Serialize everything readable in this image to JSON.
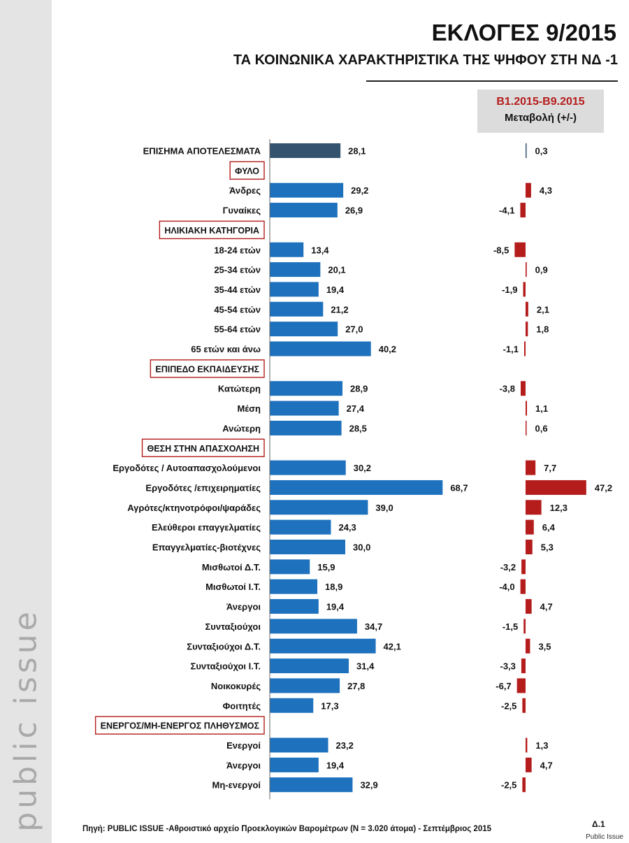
{
  "title": "ΕΚΛΟΓΕΣ 9/2015",
  "subtitle": "ΤΑ ΚΟΙΝΩΝΙΚΑ ΧΑΡΑΚΤΗΡΙΣΤΙΚΑ ΤΗΣ ΨΗΦΟΥ ΣΤΗ ΝΔ -1",
  "change_header": {
    "period": "Β1.2015-Β9.2015",
    "label": "Μεταβολή (+/-)"
  },
  "brand": "public issue",
  "source": "Πηγή:  PUBLIC ISSUE -Αθροιστικό αρχείο Προεκλογικών Βαρομέτρων (Ν = 3.020 άτομα)  - Σεπτέμβριος 2015",
  "page_number": "Δ.1",
  "watermark": "Public Issue",
  "colors": {
    "official_bar": "#34536f",
    "bar": "#1d71bd",
    "change_bar": "#b51c1c",
    "section_border": "#b51c1c"
  },
  "chart_data": {
    "type": "bar",
    "orientation": "horizontal",
    "series": [
      {
        "name": "",
        "role": "vote share"
      },
      {
        "name": "Μεταβολή (+/-)",
        "role": "change"
      }
    ],
    "rows": [
      {
        "kind": "item",
        "label": "ΕΠΙΣΗΜΑ ΑΠΟΤΕΛΕΣΜΑΤΑ",
        "value": 28.1,
        "value_text": "28,1",
        "change": 0.3,
        "change_text": "0,3",
        "official": true
      },
      {
        "kind": "section",
        "label": "ΦΥΛΟ"
      },
      {
        "kind": "item",
        "label": "Άνδρες",
        "value": 29.2,
        "value_text": "29,2",
        "change": 4.3,
        "change_text": "4,3"
      },
      {
        "kind": "item",
        "label": "Γυναίκες",
        "value": 26.9,
        "value_text": "26,9",
        "change": -4.1,
        "change_text": "-4,1"
      },
      {
        "kind": "section",
        "label": "ΗΛΙΚΙΑΚΗ ΚΑΤΗΓΟΡΙΑ"
      },
      {
        "kind": "item",
        "label": "18-24 ετών",
        "value": 13.4,
        "value_text": "13,4",
        "change": -8.5,
        "change_text": "-8,5"
      },
      {
        "kind": "item",
        "label": "25-34 ετών",
        "value": 20.1,
        "value_text": "20,1",
        "change": 0.9,
        "change_text": "0,9"
      },
      {
        "kind": "item",
        "label": "35-44 ετών",
        "value": 19.4,
        "value_text": "19,4",
        "change": -1.9,
        "change_text": "-1,9"
      },
      {
        "kind": "item",
        "label": "45-54 ετών",
        "value": 21.2,
        "value_text": "21,2",
        "change": 2.1,
        "change_text": "2,1"
      },
      {
        "kind": "item",
        "label": "55-64 ετών",
        "value": 27.0,
        "value_text": "27,0",
        "change": 1.8,
        "change_text": "1,8"
      },
      {
        "kind": "item",
        "label": "65 ετών και άνω",
        "value": 40.2,
        "value_text": "40,2",
        "change": -1.1,
        "change_text": "-1,1"
      },
      {
        "kind": "section",
        "label": "ΕΠΙΠΕΔΟ ΕΚΠΑΙΔΕΥΣΗΣ"
      },
      {
        "kind": "item",
        "label": "Κατώτερη",
        "value": 28.9,
        "value_text": "28,9",
        "change": -3.8,
        "change_text": "-3,8"
      },
      {
        "kind": "item",
        "label": "Μέση",
        "value": 27.4,
        "value_text": "27,4",
        "change": 1.1,
        "change_text": "1,1"
      },
      {
        "kind": "item",
        "label": "Ανώτερη",
        "value": 28.5,
        "value_text": "28,5",
        "change": 0.6,
        "change_text": "0,6"
      },
      {
        "kind": "section",
        "label": "ΘΕΣΗ ΣΤΗΝ ΑΠΑΣΧΟΛΗΣΗ"
      },
      {
        "kind": "item",
        "label": "Εργοδότες / Αυτοαπασχολούμενοι",
        "value": 30.2,
        "value_text": "30,2",
        "change": 7.7,
        "change_text": "7,7"
      },
      {
        "kind": "item",
        "label": "Εργοδότες /επιχειρηματίες",
        "value": 68.7,
        "value_text": "68,7",
        "change": 47.2,
        "change_text": "47,2"
      },
      {
        "kind": "item",
        "label": "Αγρότες/κτηνοτρόφοι/ψαράδες",
        "value": 39.0,
        "value_text": "39,0",
        "change": 12.3,
        "change_text": "12,3"
      },
      {
        "kind": "item",
        "label": "Ελεύθεροι επαγγελματίες",
        "value": 24.3,
        "value_text": "24,3",
        "change": 6.4,
        "change_text": "6,4"
      },
      {
        "kind": "item",
        "label": "Επαγγελματίες-βιοτέχνες",
        "value": 30.0,
        "value_text": "30,0",
        "change": 5.3,
        "change_text": "5,3"
      },
      {
        "kind": "item",
        "label": "Μισθωτοί Δ.Τ.",
        "value": 15.9,
        "value_text": "15,9",
        "change": -3.2,
        "change_text": "-3,2"
      },
      {
        "kind": "item",
        "label": "Μισθωτοί Ι.Τ.",
        "value": 18.9,
        "value_text": "18,9",
        "change": -4.0,
        "change_text": "-4,0"
      },
      {
        "kind": "item",
        "label": "Άνεργοι",
        "value": 19.4,
        "value_text": "19,4",
        "change": 4.7,
        "change_text": "4,7"
      },
      {
        "kind": "item",
        "label": "Συνταξιούχοι",
        "value": 34.7,
        "value_text": "34,7",
        "change": -1.5,
        "change_text": "-1,5"
      },
      {
        "kind": "item",
        "label": "Συνταξιούχοι Δ.Τ.",
        "value": 42.1,
        "value_text": "42,1",
        "change": 3.5,
        "change_text": "3,5"
      },
      {
        "kind": "item",
        "label": "Συνταξιούχοι Ι.Τ.",
        "value": 31.4,
        "value_text": "31,4",
        "change": -3.3,
        "change_text": "-3,3"
      },
      {
        "kind": "item",
        "label": "Νοικοκυρές",
        "value": 27.8,
        "value_text": "27,8",
        "change": -6.7,
        "change_text": "-6,7"
      },
      {
        "kind": "item",
        "label": "Φοιτητές",
        "value": 17.3,
        "value_text": "17,3",
        "change": -2.5,
        "change_text": "-2,5"
      },
      {
        "kind": "section",
        "label": "ΕΝΕΡΓΟΣ/ΜΗ-ΕΝΕΡΓΟΣ ΠΛΗΘΥΣΜΟΣ"
      },
      {
        "kind": "item",
        "label": "Ενεργοί",
        "value": 23.2,
        "value_text": "23,2",
        "change": 1.3,
        "change_text": "1,3"
      },
      {
        "kind": "item",
        "label": "Άνεργοι",
        "value": 19.4,
        "value_text": "19,4",
        "change": 4.7,
        "change_text": "4,7"
      },
      {
        "kind": "item",
        "label": "Μη-ενεργοί",
        "value": 32.9,
        "value_text": "32,9",
        "change": -2.5,
        "change_text": "-2,5"
      }
    ]
  }
}
